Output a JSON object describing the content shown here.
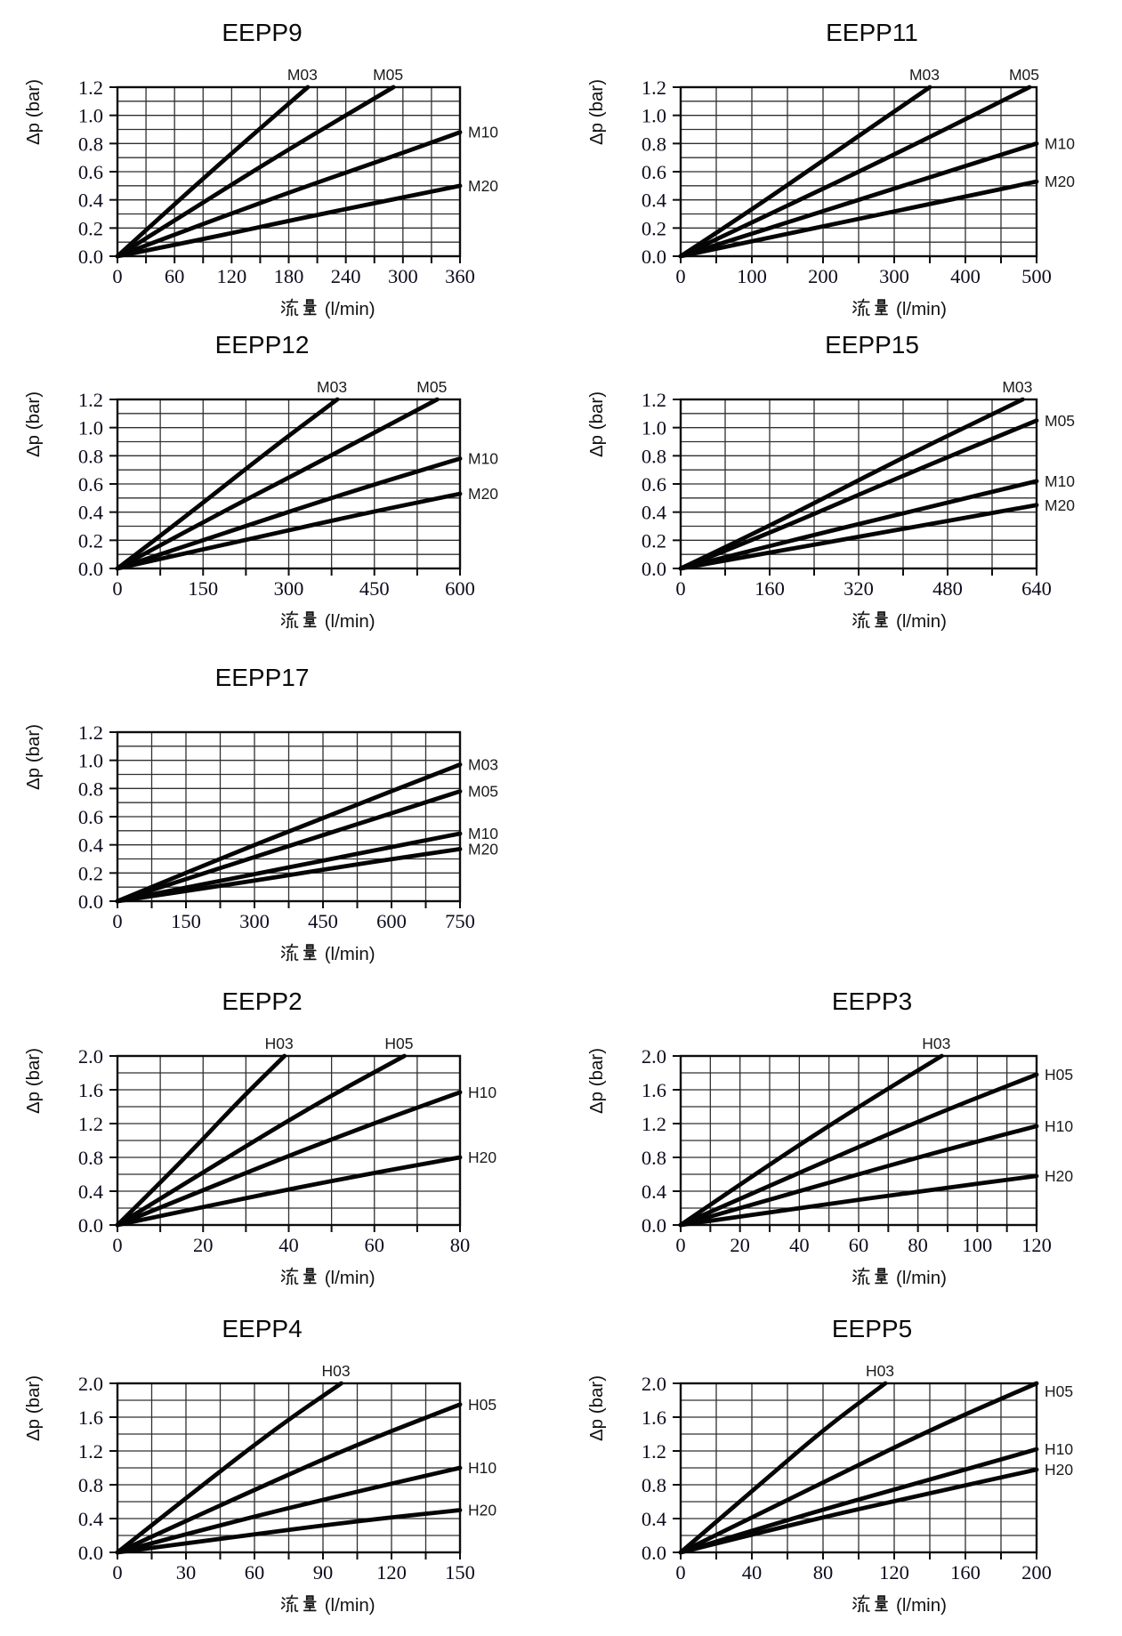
{
  "page": {
    "background": "#ffffff"
  },
  "axis_labels": {
    "ylabel": "Δp (bar)",
    "xlabel": "流量 (l/min)"
  },
  "colors": {
    "curve": "#050505",
    "grid": "#303030",
    "border": "#0d0d0d",
    "tick_text": "#0c0c1e",
    "title_text": "#0a0a0a"
  },
  "chart_data": [
    {
      "type": "line",
      "title": "EEPP9",
      "xlabel": "流量 (l/min)",
      "ylabel": "Δp (bar)",
      "xlim": [
        0,
        360
      ],
      "xticks": [
        0,
        60,
        120,
        180,
        240,
        300,
        360
      ],
      "ylim": [
        0,
        1.2
      ],
      "yticks": [
        0.0,
        0.2,
        0.4,
        0.6,
        0.8,
        1.0,
        1.2
      ],
      "grid": true,
      "series": [
        {
          "name": "M03",
          "label_side": "top",
          "points": [
            [
              0,
              0
            ],
            [
              60,
              0.37
            ],
            [
              130,
              0.79
            ],
            [
              200,
              1.2
            ]
          ]
        },
        {
          "name": "M05",
          "label_side": "top",
          "points": [
            [
              0,
              0
            ],
            [
              80,
              0.34
            ],
            [
              180,
              0.76
            ],
            [
              290,
              1.2
            ]
          ]
        },
        {
          "name": "M10",
          "label_side": "right",
          "points": [
            [
              0,
              0
            ],
            [
              90,
              0.23
            ],
            [
              200,
              0.5
            ],
            [
              290,
              0.71
            ],
            [
              360,
              0.88
            ]
          ]
        },
        {
          "name": "M20",
          "label_side": "right",
          "points": [
            [
              0,
              0
            ],
            [
              90,
              0.12
            ],
            [
              200,
              0.28
            ],
            [
              360,
              0.5
            ]
          ]
        }
      ]
    },
    {
      "type": "line",
      "title": "EEPP11",
      "xlabel": "流量 (l/min)",
      "ylabel": "Δp (bar)",
      "xlim": [
        0,
        500
      ],
      "xticks": [
        0,
        100,
        200,
        300,
        400,
        500
      ],
      "ylim": [
        0,
        1.2
      ],
      "yticks": [
        0.0,
        0.2,
        0.4,
        0.6,
        0.8,
        1.0,
        1.2
      ],
      "grid": true,
      "series": [
        {
          "name": "M03",
          "label_side": "top",
          "points": [
            [
              0,
              0
            ],
            [
              100,
              0.33
            ],
            [
              220,
              0.75
            ],
            [
              350,
              1.2
            ]
          ]
        },
        {
          "name": "M05",
          "label_side": "top",
          "points": [
            [
              0,
              0
            ],
            [
              130,
              0.31
            ],
            [
              300,
              0.72
            ],
            [
              490,
              1.2
            ]
          ]
        },
        {
          "name": "M10",
          "label_side": "right",
          "points": [
            [
              0,
              0
            ],
            [
              150,
              0.24
            ],
            [
              350,
              0.56
            ],
            [
              500,
              0.8
            ]
          ]
        },
        {
          "name": "M20",
          "label_side": "right",
          "points": [
            [
              0,
              0
            ],
            [
              150,
              0.16
            ],
            [
              350,
              0.37
            ],
            [
              500,
              0.53
            ]
          ]
        }
      ]
    },
    {
      "type": "line",
      "title": "EEPP12",
      "xlabel": "流量 (l/min)",
      "ylabel": "Δp (bar)",
      "xlim": [
        0,
        600
      ],
      "xticks": [
        0,
        150,
        300,
        450,
        600
      ],
      "ylim": [
        0,
        1.2
      ],
      "yticks": [
        0.0,
        0.2,
        0.4,
        0.6,
        0.8,
        1.0,
        1.2
      ],
      "grid": true,
      "series": [
        {
          "name": "M03",
          "label_side": "top",
          "points": [
            [
              0,
              0
            ],
            [
              120,
              0.37
            ],
            [
              260,
              0.82
            ],
            [
              385,
              1.2
            ]
          ]
        },
        {
          "name": "M05",
          "label_side": "top",
          "points": [
            [
              0,
              0
            ],
            [
              150,
              0.33
            ],
            [
              350,
              0.75
            ],
            [
              560,
              1.2
            ]
          ]
        },
        {
          "name": "M10",
          "label_side": "right",
          "points": [
            [
              0,
              0
            ],
            [
              200,
              0.27
            ],
            [
              420,
              0.56
            ],
            [
              600,
              0.78
            ]
          ]
        },
        {
          "name": "M20",
          "label_side": "right",
          "points": [
            [
              0,
              0
            ],
            [
              200,
              0.18
            ],
            [
              420,
              0.38
            ],
            [
              600,
              0.53
            ]
          ]
        }
      ]
    },
    {
      "type": "line",
      "title": "EEPP15",
      "xlabel": "流量 (l/min)",
      "ylabel": "Δp (bar)",
      "xlim": [
        0,
        640
      ],
      "xticks": [
        0,
        160,
        320,
        480,
        640
      ],
      "ylim": [
        0,
        1.2
      ],
      "yticks": [
        0.0,
        0.2,
        0.4,
        0.6,
        0.8,
        1.0,
        1.2
      ],
      "grid": true,
      "series": [
        {
          "name": "M03",
          "label_side": "top",
          "points": [
            [
              0,
              0
            ],
            [
              160,
              0.3
            ],
            [
              380,
              0.75
            ],
            [
              615,
              1.2
            ]
          ]
        },
        {
          "name": "M05",
          "label_side": "right",
          "points": [
            [
              0,
              0
            ],
            [
              160,
              0.25
            ],
            [
              400,
              0.66
            ],
            [
              640,
              1.05
            ]
          ]
        },
        {
          "name": "M10",
          "label_side": "right",
          "points": [
            [
              0,
              0
            ],
            [
              200,
              0.2
            ],
            [
              440,
              0.43
            ],
            [
              640,
              0.62
            ]
          ]
        },
        {
          "name": "M20",
          "label_side": "right",
          "points": [
            [
              0,
              0
            ],
            [
              200,
              0.14
            ],
            [
              440,
              0.31
            ],
            [
              640,
              0.45
            ]
          ]
        }
      ]
    },
    {
      "type": "line",
      "title": "EEPP17",
      "xlabel": "流量 (l/min)",
      "ylabel": "Δp (bar)",
      "xlim": [
        0,
        750
      ],
      "xticks": [
        0,
        150,
        300,
        450,
        600,
        750
      ],
      "ylim": [
        0,
        1.2
      ],
      "yticks": [
        0.0,
        0.2,
        0.4,
        0.6,
        0.8,
        1.0,
        1.2
      ],
      "grid": true,
      "series": [
        {
          "name": "M03",
          "label_side": "right",
          "points": [
            [
              0,
              0
            ],
            [
              200,
              0.27
            ],
            [
              480,
              0.63
            ],
            [
              750,
              0.97
            ]
          ]
        },
        {
          "name": "M05",
          "label_side": "right",
          "points": [
            [
              0,
              0
            ],
            [
              200,
              0.21
            ],
            [
              480,
              0.5
            ],
            [
              750,
              0.78
            ]
          ]
        },
        {
          "name": "M10",
          "label_side": "right",
          "points": [
            [
              0,
              0
            ],
            [
              250,
              0.16
            ],
            [
              500,
              0.32
            ],
            [
              750,
              0.48
            ]
          ]
        },
        {
          "name": "M20",
          "label_side": "right",
          "points": [
            [
              0,
              0
            ],
            [
              250,
              0.12
            ],
            [
              500,
              0.25
            ],
            [
              750,
              0.37
            ]
          ]
        }
      ]
    },
    {
      "type": "line",
      "title": "EEPP2",
      "xlabel": "流量 (l/min)",
      "ylabel": "Δp (bar)",
      "xlim": [
        0,
        80
      ],
      "xticks": [
        0,
        20,
        40,
        60,
        80
      ],
      "ylim": [
        0,
        2.0
      ],
      "yticks": [
        0.0,
        0.4,
        0.8,
        1.2,
        1.6,
        2.0
      ],
      "grid": true,
      "series": [
        {
          "name": "H03",
          "label_side": "top",
          "points": [
            [
              0,
              0
            ],
            [
              15,
              0.75
            ],
            [
              28,
              1.45
            ],
            [
              39,
              2.0
            ]
          ]
        },
        {
          "name": "H05",
          "label_side": "top",
          "points": [
            [
              0,
              0
            ],
            [
              25,
              0.78
            ],
            [
              47,
              1.45
            ],
            [
              67,
              2.0
            ]
          ]
        },
        {
          "name": "H10",
          "label_side": "right",
          "points": [
            [
              0,
              0
            ],
            [
              30,
              0.62
            ],
            [
              57,
              1.15
            ],
            [
              80,
              1.57
            ]
          ]
        },
        {
          "name": "H20",
          "label_side": "right",
          "points": [
            [
              0,
              0
            ],
            [
              30,
              0.32
            ],
            [
              57,
              0.59
            ],
            [
              80,
              0.8
            ]
          ]
        }
      ]
    },
    {
      "type": "line",
      "title": "EEPP3",
      "xlabel": "流量 (l/min)",
      "ylabel": "Δp (bar)",
      "xlim": [
        0,
        120
      ],
      "xticks": [
        0,
        20,
        40,
        60,
        80,
        100,
        120
      ],
      "ylim": [
        0,
        2.0
      ],
      "yticks": [
        0.0,
        0.4,
        0.8,
        1.2,
        1.6,
        2.0
      ],
      "grid": true,
      "series": [
        {
          "name": "H03",
          "label_side": "top",
          "points": [
            [
              0,
              0
            ],
            [
              30,
              0.72
            ],
            [
              60,
              1.4
            ],
            [
              88,
              2.0
            ]
          ]
        },
        {
          "name": "H05",
          "label_side": "right",
          "points": [
            [
              0,
              0
            ],
            [
              40,
              0.62
            ],
            [
              85,
              1.3
            ],
            [
              120,
              1.78
            ]
          ]
        },
        {
          "name": "H10",
          "label_side": "right",
          "points": [
            [
              0,
              0
            ],
            [
              40,
              0.4
            ],
            [
              85,
              0.85
            ],
            [
              120,
              1.17
            ]
          ]
        },
        {
          "name": "H20",
          "label_side": "right",
          "points": [
            [
              0,
              0
            ],
            [
              40,
              0.2
            ],
            [
              85,
              0.42
            ],
            [
              120,
              0.58
            ]
          ]
        }
      ]
    },
    {
      "type": "line",
      "title": "EEPP4",
      "xlabel": "流量 (l/min)",
      "ylabel": "Δp (bar)",
      "xlim": [
        0,
        150
      ],
      "xticks": [
        0,
        30,
        60,
        90,
        120,
        150
      ],
      "ylim": [
        0,
        2.0
      ],
      "yticks": [
        0.0,
        0.4,
        0.8,
        1.2,
        1.6,
        2.0
      ],
      "grid": true,
      "series": [
        {
          "name": "H03",
          "label_side": "top",
          "points": [
            [
              0,
              0
            ],
            [
              35,
              0.75
            ],
            [
              70,
              1.48
            ],
            [
              98,
              2.0
            ]
          ]
        },
        {
          "name": "H05",
          "label_side": "right",
          "points": [
            [
              0,
              0
            ],
            [
              50,
              0.62
            ],
            [
              105,
              1.28
            ],
            [
              150,
              1.75
            ]
          ]
        },
        {
          "name": "H10",
          "label_side": "right",
          "points": [
            [
              0,
              0
            ],
            [
              50,
              0.36
            ],
            [
              105,
              0.72
            ],
            [
              150,
              1.0
            ]
          ]
        },
        {
          "name": "H20",
          "label_side": "right",
          "points": [
            [
              0,
              0
            ],
            [
              50,
              0.18
            ],
            [
              105,
              0.37
            ],
            [
              150,
              0.5
            ]
          ]
        }
      ]
    },
    {
      "type": "line",
      "title": "EEPP5",
      "xlabel": "流量 (l/min)",
      "ylabel": "Δp (bar)",
      "xlim": [
        0,
        200
      ],
      "xticks": [
        0,
        40,
        80,
        120,
        160,
        200
      ],
      "ylim": [
        0,
        2.0
      ],
      "yticks": [
        0.0,
        0.4,
        0.8,
        1.2,
        1.6,
        2.0
      ],
      "grid": true,
      "series": [
        {
          "name": "H03",
          "label_side": "top",
          "points": [
            [
              0,
              0
            ],
            [
              40,
              0.72
            ],
            [
              80,
              1.45
            ],
            [
              115,
              2.0
            ]
          ]
        },
        {
          "name": "H05",
          "label_side": "right",
          "points": [
            [
              0,
              0
            ],
            [
              70,
              0.72
            ],
            [
              140,
              1.45
            ],
            [
              200,
              2.0
            ]
          ]
        },
        {
          "name": "H10",
          "label_side": "right",
          "points": [
            [
              0,
              0
            ],
            [
              70,
              0.45
            ],
            [
              140,
              0.86
            ],
            [
              200,
              1.22
            ]
          ]
        },
        {
          "name": "H20",
          "label_side": "right",
          "points": [
            [
              0,
              0
            ],
            [
              70,
              0.37
            ],
            [
              140,
              0.7
            ],
            [
              200,
              0.98
            ]
          ]
        }
      ]
    }
  ]
}
